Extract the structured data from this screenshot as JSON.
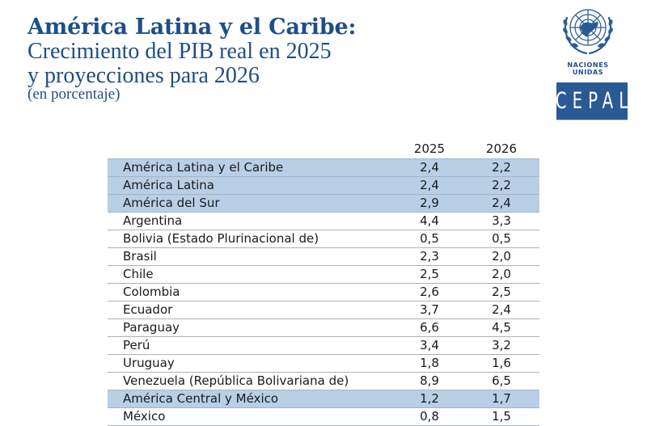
{
  "header": {
    "title_bold": "América Latina y el Caribe:",
    "title_line2": "Crecimiento del PIB real en 2025",
    "title_line3": "y proyecciones para 2026",
    "unit": "(en porcentaje)"
  },
  "logos": {
    "un_label": "NACIONES UNIDAS",
    "cepal": "CEPAL",
    "brand_color": "#2a5a94"
  },
  "table": {
    "columns": [
      "",
      "2025",
      "2026"
    ],
    "highlight_color": "#b8cfe6",
    "rows": [
      {
        "name": "América Latina y el Caribe",
        "y2025": "2,4",
        "y2026": "2,2",
        "highlight": true
      },
      {
        "name": "América Latina",
        "y2025": "2,4",
        "y2026": "2,2",
        "highlight": true
      },
      {
        "name": "América del Sur",
        "y2025": "2,9",
        "y2026": "2,4",
        "highlight": true
      },
      {
        "name": "Argentina",
        "y2025": "4,4",
        "y2026": "3,3",
        "highlight": false
      },
      {
        "name": "Bolivia (Estado Plurinacional de)",
        "y2025": "0,5",
        "y2026": "0,5",
        "highlight": false
      },
      {
        "name": "Brasil",
        "y2025": "2,3",
        "y2026": "2,0",
        "highlight": false
      },
      {
        "name": "Chile",
        "y2025": "2,5",
        "y2026": "2,0",
        "highlight": false
      },
      {
        "name": "Colombia",
        "y2025": "2,6",
        "y2026": "2,5",
        "highlight": false
      },
      {
        "name": "Ecuador",
        "y2025": "3,7",
        "y2026": "2,4",
        "highlight": false
      },
      {
        "name": "Paraguay",
        "y2025": "6,6",
        "y2026": "4,5",
        "highlight": false
      },
      {
        "name": "Perú",
        "y2025": "3,4",
        "y2026": "3,2",
        "highlight": false
      },
      {
        "name": "Uruguay",
        "y2025": "1,8",
        "y2026": "1,6",
        "highlight": false
      },
      {
        "name": "Venezuela (República Bolivariana de)",
        "y2025": "8,9",
        "y2026": "6,5",
        "highlight": false
      },
      {
        "name": "América Central y México",
        "y2025": "1,2",
        "y2026": "1,7",
        "highlight": true
      },
      {
        "name": "México",
        "y2025": "0,8",
        "y2026": "1,5",
        "highlight": false
      }
    ]
  }
}
